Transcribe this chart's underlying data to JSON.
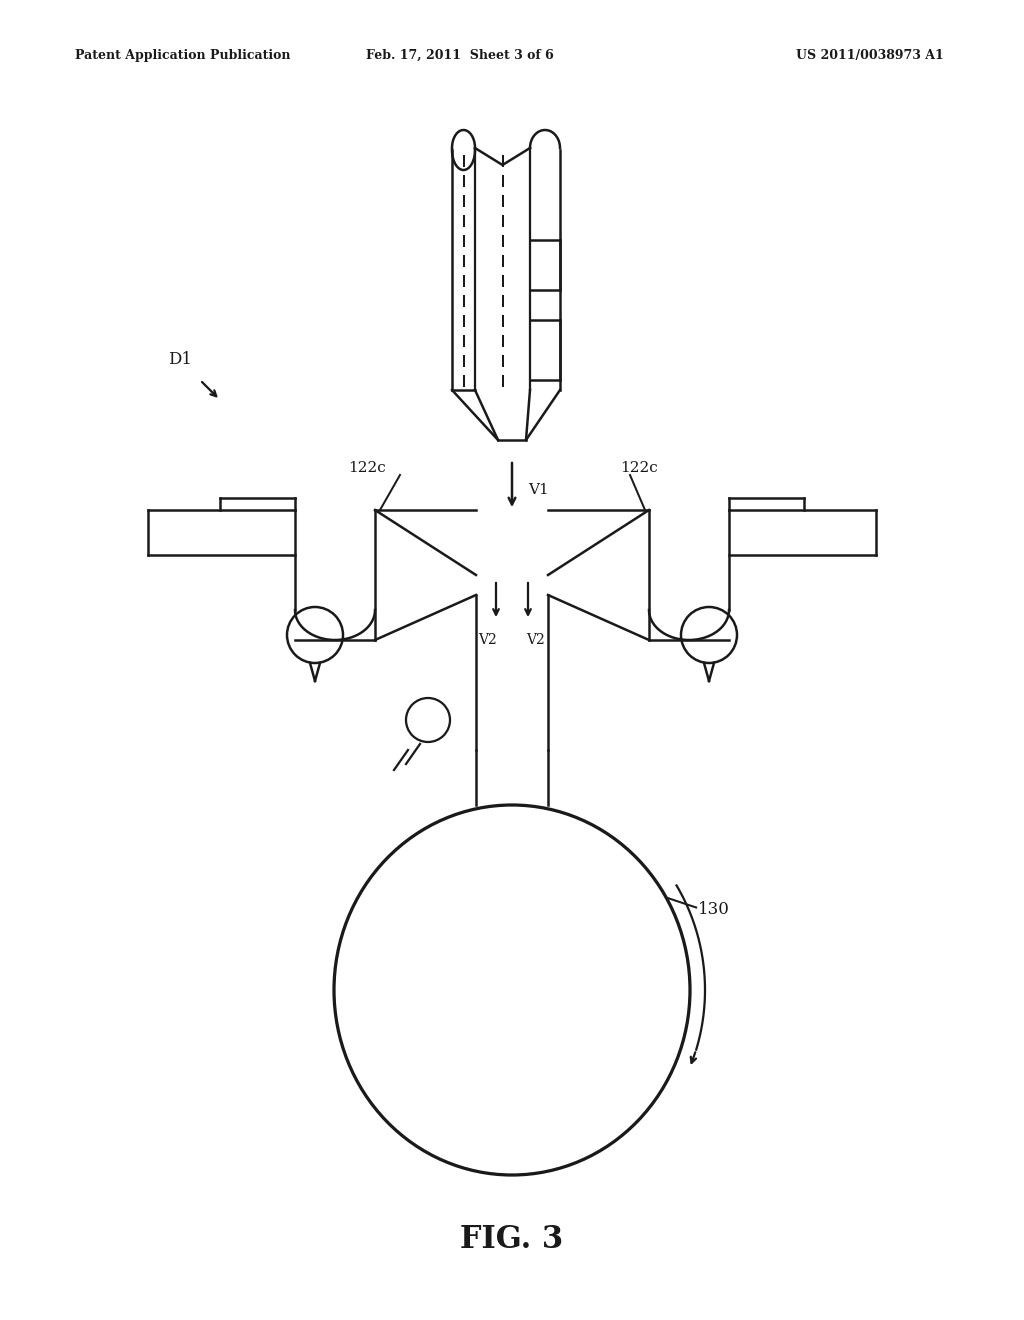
{
  "bg_color": "#ffffff",
  "line_color": "#1a1a1a",
  "line_width": 1.8,
  "header_left": "Patent Application Publication",
  "header_mid": "Feb. 17, 2011  Sheet 3 of 6",
  "header_right": "US 2011/0038973 A1",
  "fig_label": "FIG. 3"
}
